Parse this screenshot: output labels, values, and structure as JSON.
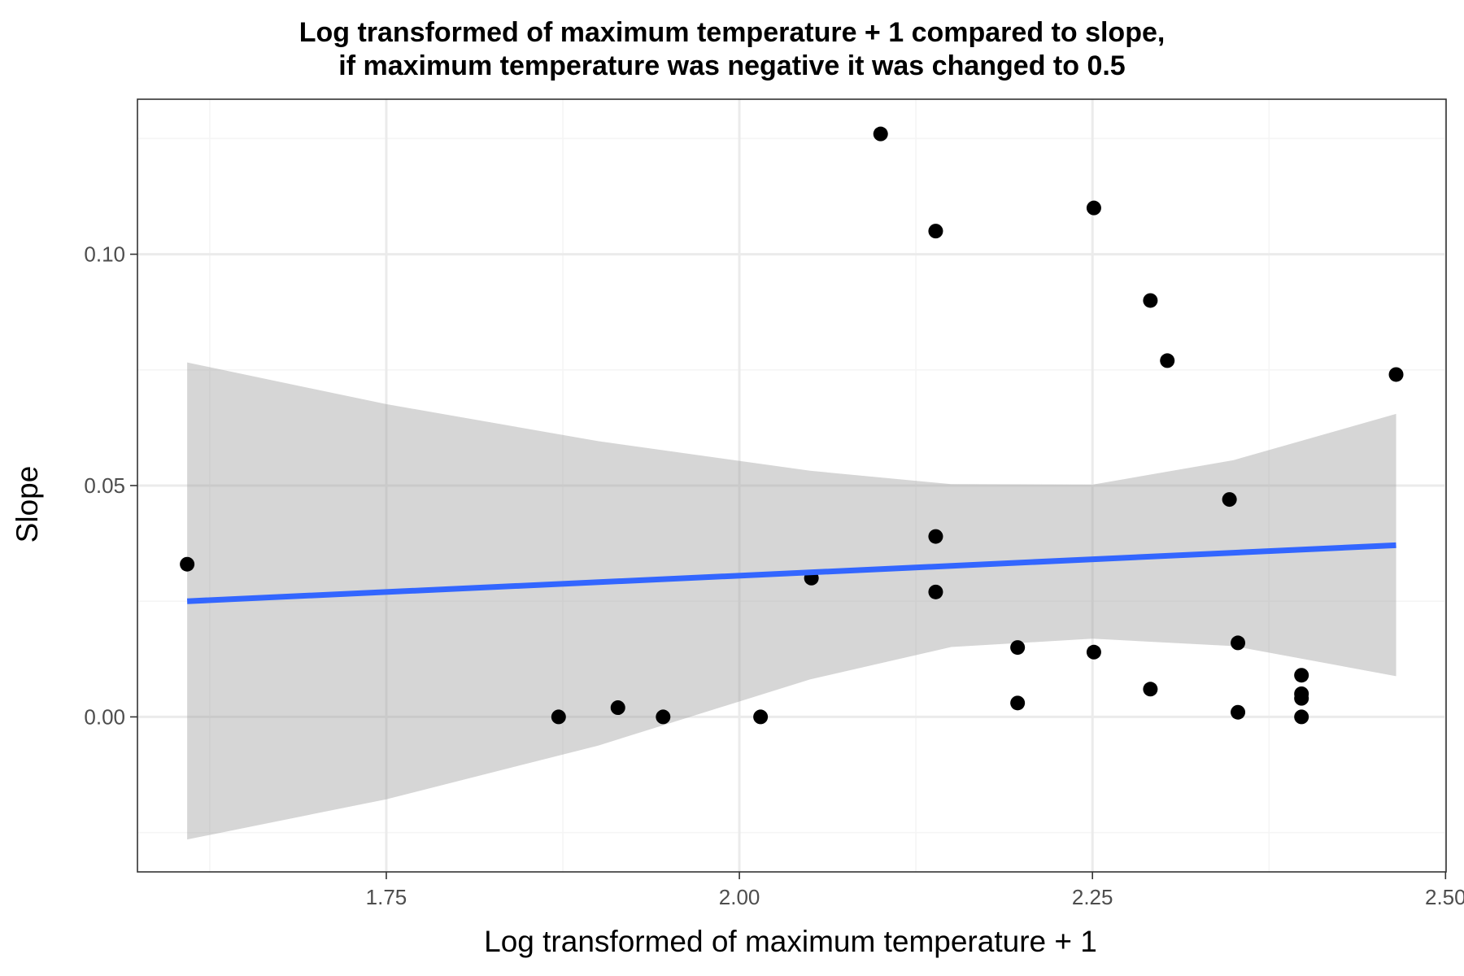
{
  "chart_data": {
    "type": "scatter",
    "title": [
      "Log transformed of maximum temperature + 1 compared to slope,",
      "if maximum temperature was negative it was changed to 0.5"
    ],
    "xlabel": "Log transformed of maximum temperature + 1",
    "ylabel": "Slope",
    "xlim": [
      1.5738,
      2.5004
    ],
    "ylim": [
      -0.0335,
      0.1335
    ],
    "x_ticks": [
      {
        "value": 1.75,
        "label": "1.75"
      },
      {
        "value": 2.0,
        "label": "2.00"
      },
      {
        "value": 2.25,
        "label": "2.25"
      },
      {
        "value": 2.5,
        "label": "2.50"
      }
    ],
    "x_minor": [
      1.625,
      1.875,
      2.125,
      2.375
    ],
    "y_ticks": [
      {
        "value": 0.0,
        "label": "0.00"
      },
      {
        "value": 0.05,
        "label": "0.05"
      },
      {
        "value": 0.1,
        "label": "0.10"
      }
    ],
    "y_minor": [
      -0.025,
      0.025,
      0.075,
      0.125
    ],
    "grid": true,
    "legend": "none",
    "colors": {
      "points": "#000000",
      "fit_line": "#3366ff",
      "confidence_band": "#999999",
      "panel_border": "#333333",
      "grid_major": "#ebebeb",
      "grid_minor": "#f5f5f5"
    },
    "points": [
      {
        "x": 1.609,
        "y": 0.033
      },
      {
        "x": 1.872,
        "y": 0.0
      },
      {
        "x": 1.914,
        "y": 0.002
      },
      {
        "x": 1.946,
        "y": 0.0
      },
      {
        "x": 2.015,
        "y": 0.0
      },
      {
        "x": 2.051,
        "y": 0.03
      },
      {
        "x": 2.1,
        "y": 0.126
      },
      {
        "x": 2.139,
        "y": 0.105
      },
      {
        "x": 2.139,
        "y": 0.039
      },
      {
        "x": 2.139,
        "y": 0.027
      },
      {
        "x": 2.197,
        "y": 0.015
      },
      {
        "x": 2.197,
        "y": 0.003
      },
      {
        "x": 2.251,
        "y": 0.11
      },
      {
        "x": 2.251,
        "y": 0.014
      },
      {
        "x": 2.291,
        "y": 0.09
      },
      {
        "x": 2.291,
        "y": 0.006
      },
      {
        "x": 2.303,
        "y": 0.077
      },
      {
        "x": 2.347,
        "y": 0.047
      },
      {
        "x": 2.353,
        "y": 0.016
      },
      {
        "x": 2.353,
        "y": 0.001
      },
      {
        "x": 2.398,
        "y": 0.009
      },
      {
        "x": 2.398,
        "y": 0.005
      },
      {
        "x": 2.398,
        "y": 0.004
      },
      {
        "x": 2.398,
        "y": 0.0
      },
      {
        "x": 2.465,
        "y": 0.074
      }
    ],
    "fit_line": {
      "x": [
        1.609,
        2.465
      ],
      "y": [
        0.025,
        0.0371
      ]
    },
    "confidence_band": {
      "x": [
        1.609,
        1.75,
        1.9,
        2.05,
        2.15,
        2.25,
        2.35,
        2.465
      ],
      "upper": [
        0.0766,
        0.0676,
        0.0596,
        0.0532,
        0.0503,
        0.0502,
        0.0555,
        0.0655
      ],
      "lower": [
        -0.0265,
        -0.0178,
        -0.0062,
        0.0081,
        0.0151,
        0.0169,
        0.0153,
        0.0088
      ]
    }
  }
}
